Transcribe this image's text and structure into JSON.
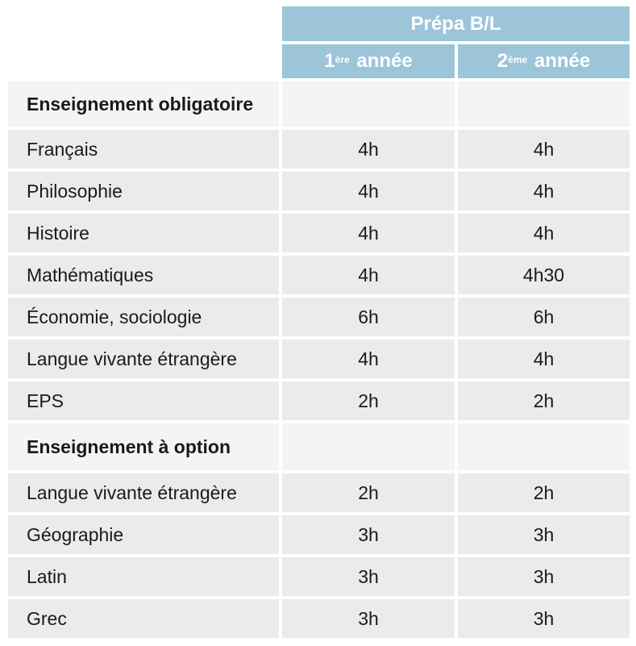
{
  "header": {
    "title": "Prépa B/L",
    "col1": {
      "ordinal": "1",
      "suffix": "ère",
      "label": "année"
    },
    "col2": {
      "ordinal": "2",
      "suffix": "ème",
      "label": "année"
    }
  },
  "sections": [
    {
      "title": "Enseignement  obligatoire",
      "rows": [
        {
          "subject": "Français",
          "y1": "4h",
          "y2": "4h"
        },
        {
          "subject": "Philosophie",
          "y1": "4h",
          "y2": "4h"
        },
        {
          "subject": "Histoire",
          "y1": "4h",
          "y2": "4h"
        },
        {
          "subject": "Mathématiques",
          "y1": "4h",
          "y2": "4h30"
        },
        {
          "subject": "Économie, sociologie",
          "y1": "6h",
          "y2": "6h"
        },
        {
          "subject": "Langue vivante étrangère",
          "y1": "4h",
          "y2": "4h"
        },
        {
          "subject": "EPS",
          "y1": "2h",
          "y2": "2h"
        }
      ]
    },
    {
      "title": "Enseignement  à option",
      "rows": [
        {
          "subject": "Langue vivante étrangère",
          "y1": "2h",
          "y2": "2h"
        },
        {
          "subject": "Géographie",
          "y1": "3h",
          "y2": "3h"
        },
        {
          "subject": "Latin",
          "y1": "3h",
          "y2": "3h"
        },
        {
          "subject": "Grec",
          "y1": "3h",
          "y2": "3h"
        }
      ]
    }
  ]
}
